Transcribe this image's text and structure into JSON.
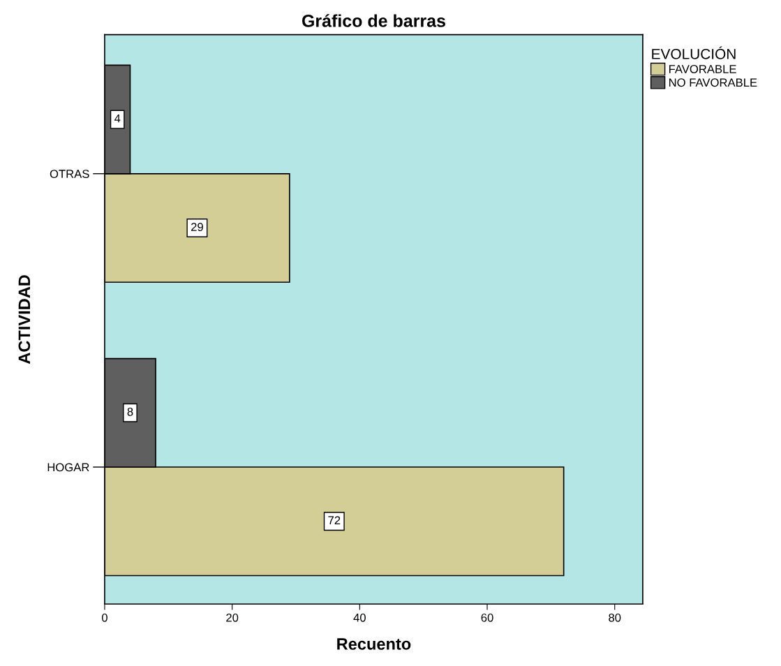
{
  "chart_data": {
    "type": "bar",
    "orientation": "horizontal",
    "title": "Gráfico de barras",
    "xlabel": "Recuento",
    "ylabel": "ACTIVIDAD",
    "legend_title": "EVOLUCIÓN",
    "legend": "right",
    "categories": [
      "OTRAS",
      "HOGAR"
    ],
    "series": [
      {
        "name": "FAVORABLE",
        "color": "#d3cd96",
        "values": [
          29,
          72
        ]
      },
      {
        "name": "NO FAVORABLE",
        "color": "#5f5f5f",
        "values": [
          4,
          8
        ]
      }
    ],
    "xlim": [
      0,
      84.4
    ],
    "xticks": [
      0,
      20,
      40,
      60,
      80
    ],
    "data_labels": true,
    "grid": false
  }
}
